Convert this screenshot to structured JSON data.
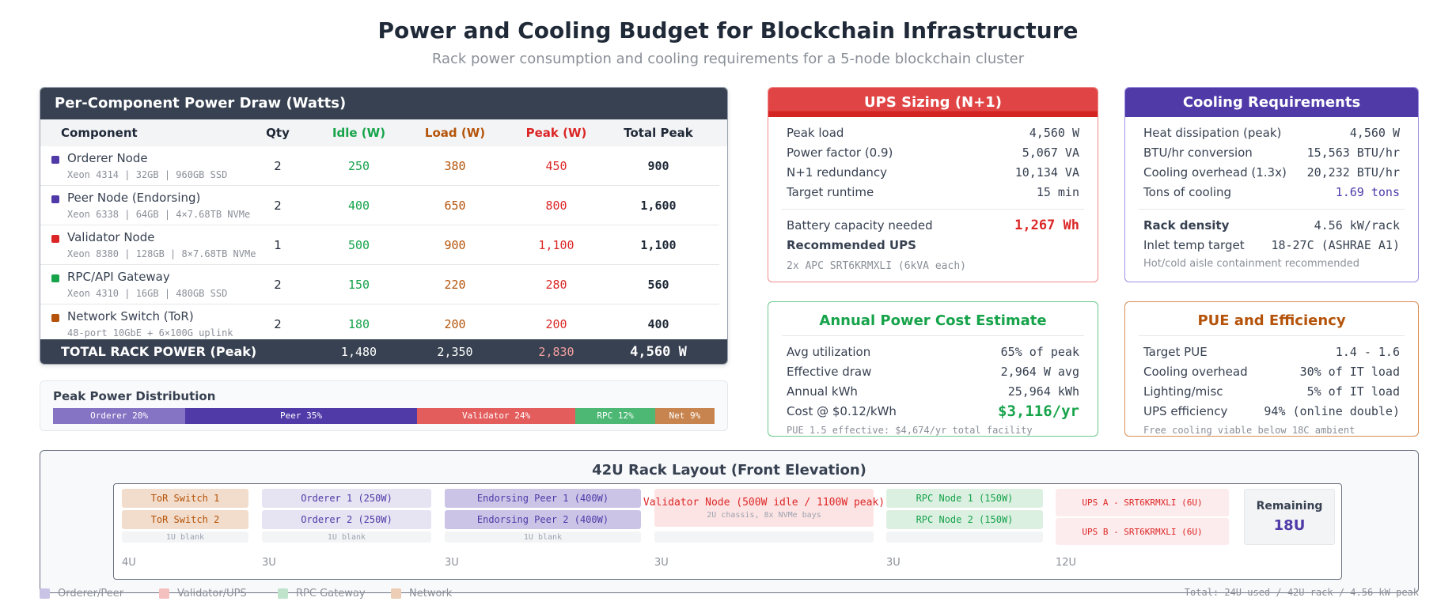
{
  "title": "Power and Cooling Budget for Blockchain Infrastructure",
  "subtitle": "Rack power consumption and cooling requirements for a 5-node blockchain cluster",
  "colors": {
    "dark": "#374151",
    "idle": "#16a34a",
    "load": "#b45309",
    "peak": "#dc2626",
    "purple": "#4f3aa8"
  },
  "power_table": {
    "title": "Per-Component Power Draw (Watts)",
    "headers": [
      "Component",
      "Qty",
      "Idle (W)",
      "Load (W)",
      "Peak (W)",
      "Total Peak"
    ],
    "rows": [
      {
        "name": "Orderer Node",
        "spec": "Xeon 4314 | 32GB | 960GB SSD",
        "color": "#4f3aa8",
        "qty": "2",
        "idle": "250",
        "load": "380",
        "peak": "450",
        "total": "900"
      },
      {
        "name": "Peer Node (Endorsing)",
        "spec": "Xeon 6338 | 64GB | 4×7.68TB NVMe",
        "color": "#4f3aa8",
        "qty": "2",
        "idle": "400",
        "load": "650",
        "peak": "800",
        "total": "1,600"
      },
      {
        "name": "Validator Node",
        "spec": "Xeon 8380 | 128GB | 8×7.68TB NVMe",
        "color": "#dc2626",
        "qty": "1",
        "idle": "500",
        "load": "900",
        "peak": "1,100",
        "total": "1,100"
      },
      {
        "name": "RPC/API Gateway",
        "spec": "Xeon 4310 | 16GB | 480GB SSD",
        "color": "#16a34a",
        "qty": "2",
        "idle": "150",
        "load": "220",
        "peak": "280",
        "total": "560"
      },
      {
        "name": "Network Switch (ToR)",
        "spec": "48-port 10GbE + 6×100G uplink",
        "color": "#b45309",
        "qty": "2",
        "idle": "180",
        "load": "200",
        "peak": "200",
        "total": "400"
      }
    ],
    "total": {
      "label": "TOTAL RACK POWER (Peak)",
      "idle": "1,480",
      "load": "2,350",
      "peak": "2,830",
      "total": "4,560 W"
    }
  },
  "distribution": {
    "title": "Peak Power Distribution",
    "segments": [
      {
        "label": "Orderer 20%",
        "percent": 20,
        "color": "#8573c4"
      },
      {
        "label": "Peer 35%",
        "percent": 35,
        "color": "#4f3aa8"
      },
      {
        "label": "Validator 24%",
        "percent": 24,
        "color": "#e35d5d"
      },
      {
        "label": "RPC 12%",
        "percent": 12,
        "color": "#4cb874"
      },
      {
        "label": "Net 9%",
        "percent": 9,
        "color": "#c8844e"
      }
    ]
  },
  "ups": {
    "title": "UPS Sizing (N+1)",
    "rows": [
      {
        "label": "Peak load",
        "value": "4,560 W"
      },
      {
        "label": "Power factor (0.9)",
        "value": "5,067 VA"
      },
      {
        "label": "N+1 redundancy",
        "value": "10,134 VA"
      },
      {
        "label": "Target runtime",
        "value": "15 min"
      }
    ],
    "battery_label": "Battery capacity needed",
    "battery_value": "1,267 Wh",
    "recommended_label": "Recommended UPS",
    "recommended_value": "2x APC SRT6KRMXLI (6kVA each)"
  },
  "cooling": {
    "title": "Cooling Requirements",
    "rows": [
      {
        "label": "Heat dissipation (peak)",
        "value": "4,560 W"
      },
      {
        "label": "BTU/hr conversion",
        "value": "15,563 BTU/hr"
      },
      {
        "label": "Cooling overhead (1.3x)",
        "value": "20,232 BTU/hr"
      },
      {
        "label": "Tons of cooling",
        "value": "1.69 tons"
      }
    ],
    "density_label": "Rack density",
    "density_value": "4.56 kW/rack",
    "inlet_label": "Inlet temp target",
    "inlet_value": "18-27C (ASHRAE A1)",
    "note": "Hot/cold aisle containment recommended"
  },
  "cost": {
    "title": "Annual Power Cost Estimate",
    "rows": [
      {
        "label": "Avg utilization",
        "value": "65% of peak"
      },
      {
        "label": "Effective draw",
        "value": "2,964 W avg"
      },
      {
        "label": "Annual kWh",
        "value": "25,964 kWh"
      }
    ],
    "cost_label": "Cost @ $0.12/kWh",
    "cost_value": "$3,116/yr",
    "note": "PUE 1.5 effective: $4,674/yr total facility"
  },
  "pue": {
    "title": "PUE and Efficiency",
    "rows": [
      {
        "label": "Target PUE",
        "value": "1.4 - 1.6"
      },
      {
        "label": "Cooling overhead",
        "value": "30% of IT load"
      },
      {
        "label": "Lighting/misc",
        "value": "5% of IT load"
      },
      {
        "label": "UPS efficiency",
        "value": "94% (online double)"
      }
    ],
    "note": "Free cooling viable below 18C ambient"
  },
  "rack": {
    "title": "42U Rack Layout (Front Elevation)",
    "tor1": "ToR Switch 1",
    "tor2": "ToR Switch 2",
    "ord1": "Orderer 1 (250W)",
    "ord2": "Orderer 2 (250W)",
    "peer1": "Endorsing Peer 1 (400W)",
    "peer2": "Endorsing Peer 2 (400W)",
    "validator": "Validator Node (500W idle / 1100W peak)",
    "validator_sub": "2U chassis, 8x NVMe bays",
    "rpc1": "RPC Node 1 (150W)",
    "rpc2": "RPC Node 2 (150W)",
    "upsA": "UPS A - SRT6KRMXLI (6U)",
    "upsB": "UPS B - SRT6KRMXLI (6U)",
    "blank": "1U blank",
    "remaining_label": "Remaining",
    "remaining_value": "18U",
    "units": [
      "4U",
      "3U",
      "3U",
      "3U",
      "3U",
      "12U"
    ],
    "legend": [
      {
        "label": "Orderer/Peer",
        "color": "#c9c3e6"
      },
      {
        "label": "Validator/UPS",
        "color": "#f4c0c0"
      },
      {
        "label": "RPC Gateway",
        "color": "#bfe3cb"
      },
      {
        "label": "Network",
        "color": "#edcdb3"
      }
    ],
    "total": "Total: 24U used / 42U rack / 4.56 kW peak"
  }
}
